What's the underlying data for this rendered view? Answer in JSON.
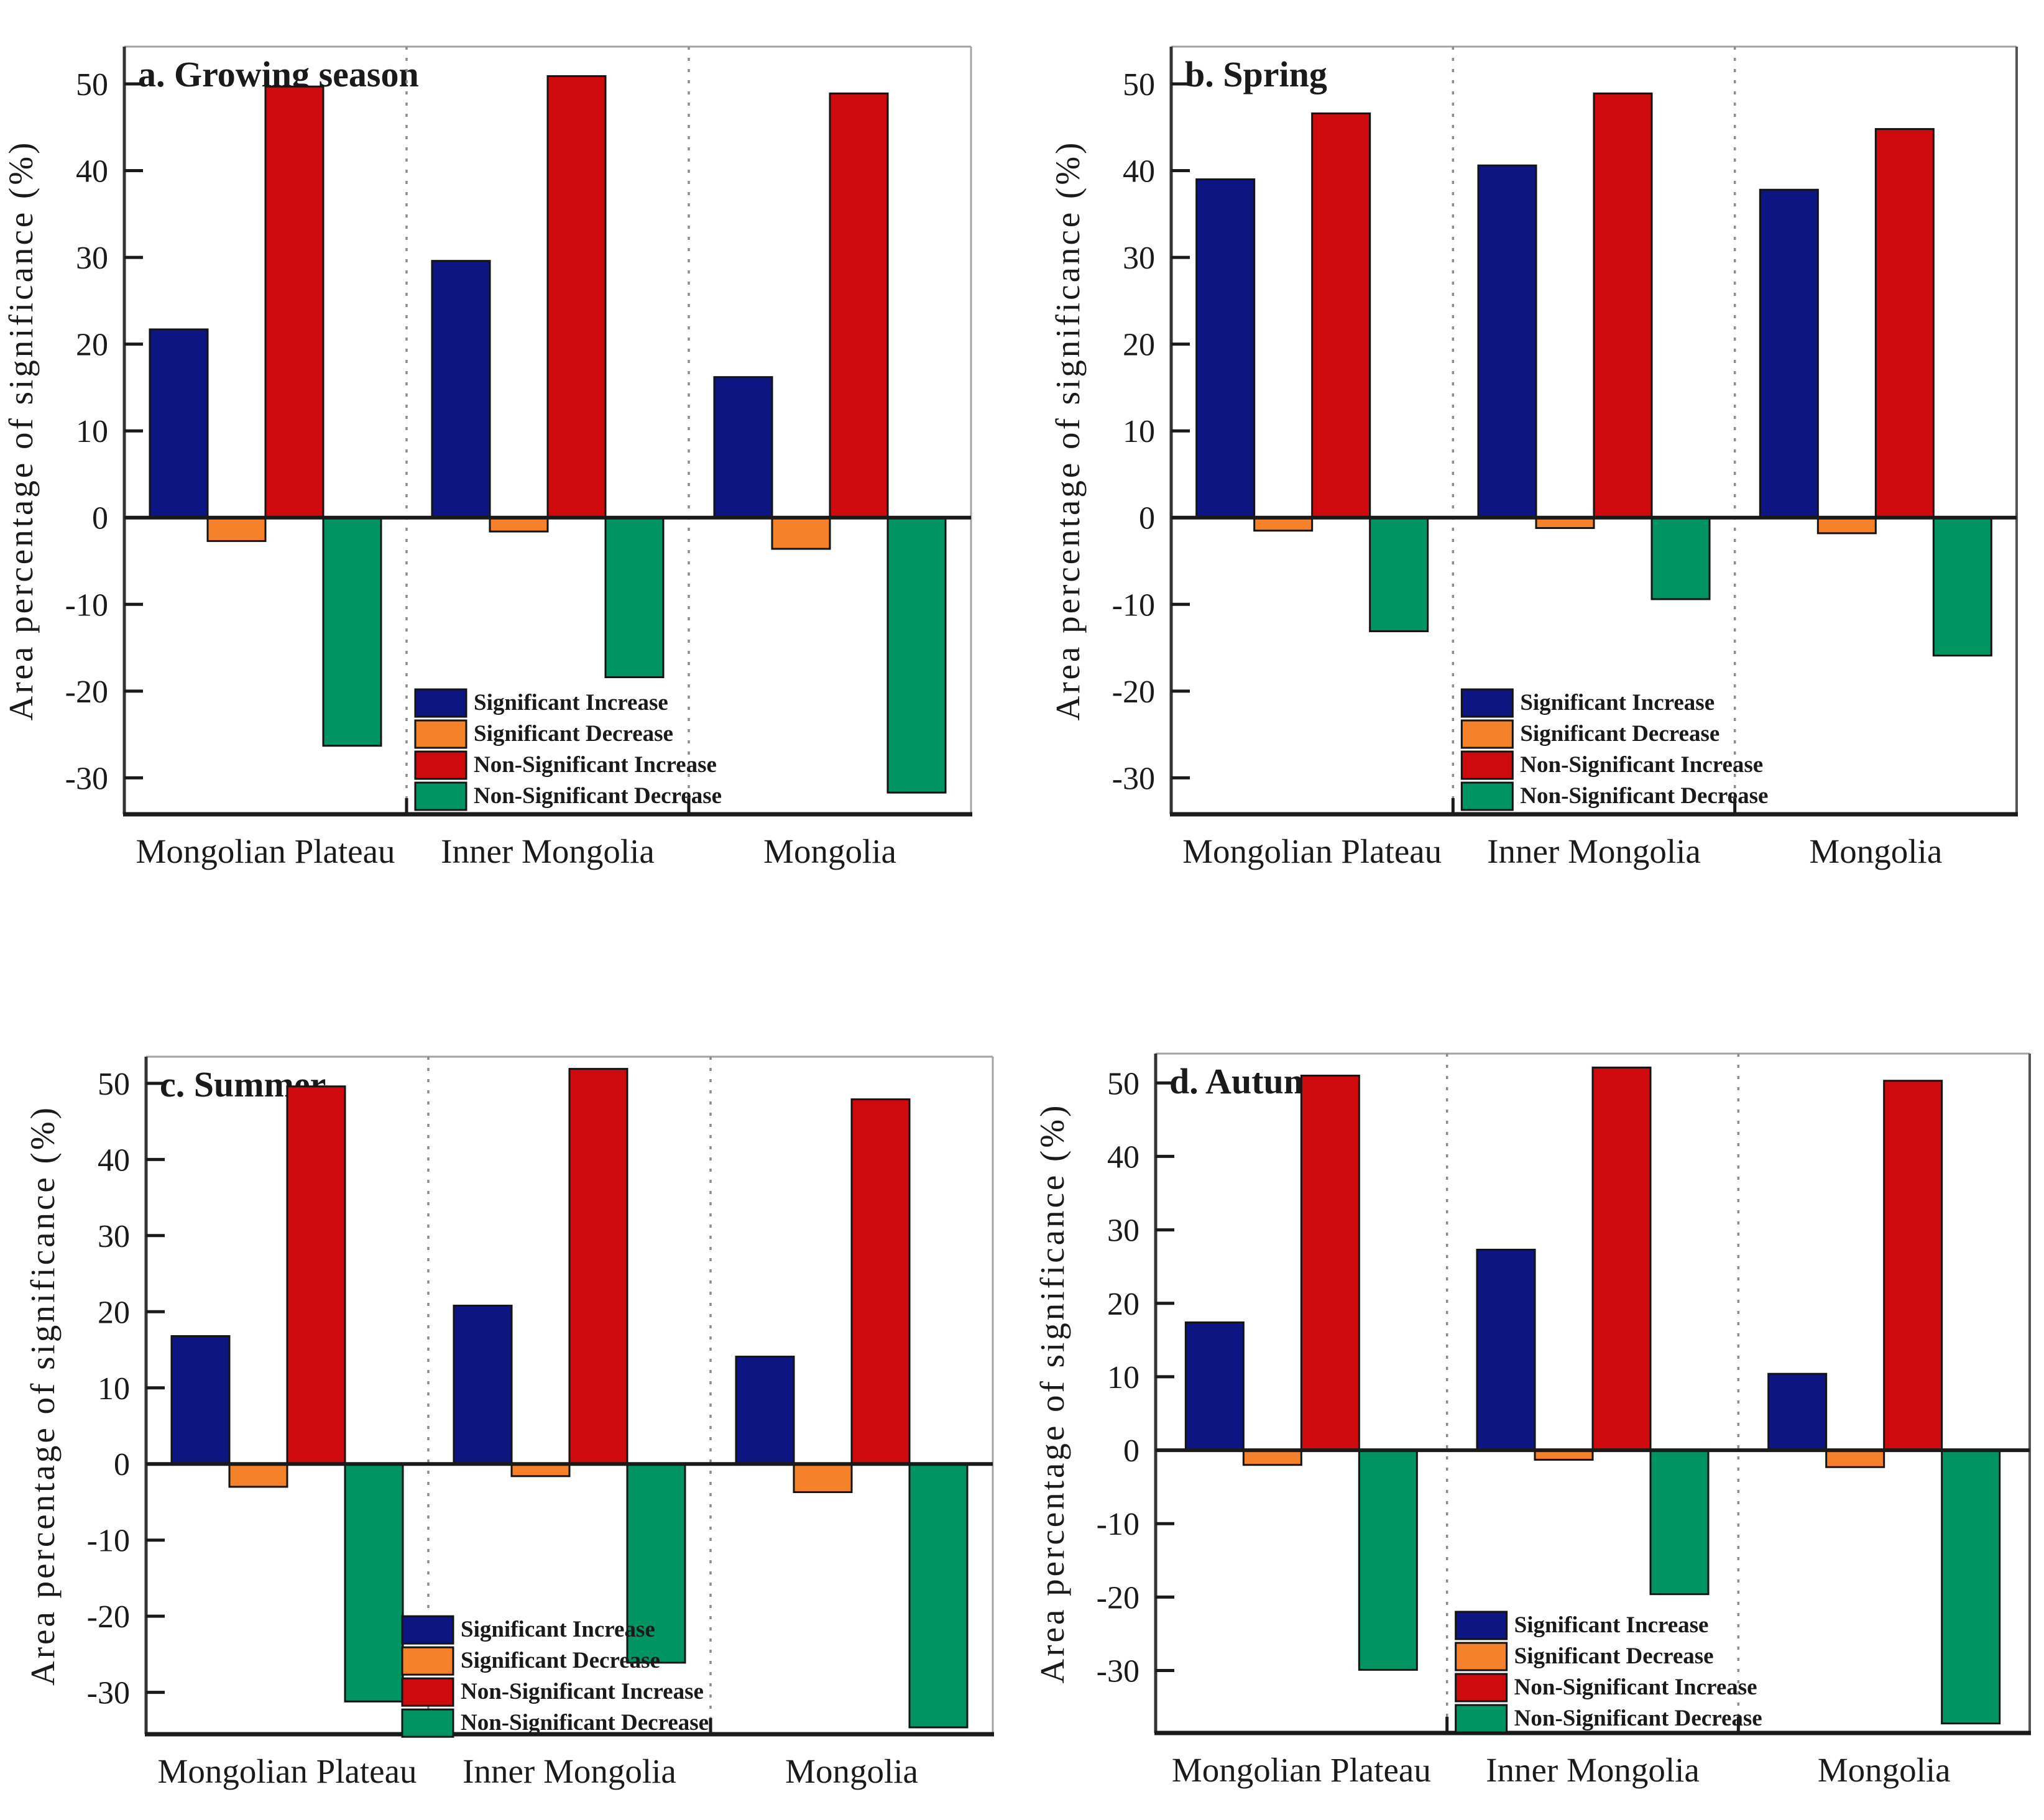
{
  "figure": {
    "ylabel": "Area percentage of significance (%)",
    "categories": [
      "Mongolian Plateau",
      "Inner Mongolia",
      "Mongolia"
    ],
    "legend": [
      "Significant Increase",
      "Significant Decrease",
      "Non-Significant Increase",
      "Non-Significant Decrease"
    ],
    "colors": {
      "significant_increase": "#0D1583",
      "significant_decrease": "#F5822A",
      "non_significant_increase": "#CF0A0E",
      "non_significant_decrease": "#009463",
      "axis": "#1A1A1A",
      "frame": "#A3A3A3",
      "divider": "#8C8C8C",
      "text": "#1A1A1A"
    }
  },
  "chart_data": [
    {
      "type": "bar",
      "panel": "a",
      "title": "a. Growing season",
      "ylabel": "Area percentage of significance (%)",
      "xlabel": "",
      "categories": [
        "Mongolian Plateau",
        "Inner Mongolia",
        "Mongolia"
      ],
      "yticks": [
        50,
        40,
        30,
        20,
        10,
        0,
        -10,
        -20,
        -30
      ],
      "ylim": [
        -34.2,
        54.3
      ],
      "grid": false,
      "legend_position": "inside-bottom-center",
      "series": [
        {
          "name": "Significant Increase",
          "color": "#0D1583",
          "values": [
            21.7,
            29.6,
            16.2
          ]
        },
        {
          "name": "Significant Decrease",
          "color": "#F5822A",
          "values": [
            -2.7,
            -1.6,
            -3.6
          ]
        },
        {
          "name": "Non-Significant Increase",
          "color": "#CF0A0E",
          "values": [
            49.7,
            50.9,
            48.9
          ]
        },
        {
          "name": "Non-Significant Decrease",
          "color": "#009463",
          "values": [
            -26.3,
            -18.4,
            -31.7
          ]
        }
      ]
    },
    {
      "type": "bar",
      "panel": "b",
      "title": "b. Spring",
      "ylabel": "Area percentage of significance (%)",
      "xlabel": "",
      "categories": [
        "Mongolian Plateau",
        "Inner Mongolia",
        "Mongolia"
      ],
      "yticks": [
        50,
        40,
        30,
        20,
        10,
        0,
        -10,
        -20,
        -30
      ],
      "ylim": [
        -34.2,
        54.3
      ],
      "grid": false,
      "legend_position": "inside-bottom-center",
      "series": [
        {
          "name": "Significant Increase",
          "color": "#0D1583",
          "values": [
            39.0,
            40.6,
            37.8
          ]
        },
        {
          "name": "Significant Decrease",
          "color": "#F5822A",
          "values": [
            -1.5,
            -1.2,
            -1.8
          ]
        },
        {
          "name": "Non-Significant Increase",
          "color": "#CF0A0E",
          "values": [
            46.6,
            48.9,
            44.8
          ]
        },
        {
          "name": "Non-Significant Decrease",
          "color": "#009463",
          "values": [
            -13.1,
            -9.4,
            -15.9
          ]
        }
      ]
    },
    {
      "type": "bar",
      "panel": "c",
      "title": "c. Summer",
      "ylabel": "Area percentage of significance (%)",
      "xlabel": "",
      "categories": [
        "Mongolian Plateau",
        "Inner Mongolia",
        "Mongolia"
      ],
      "yticks": [
        50,
        40,
        30,
        20,
        10,
        0,
        -10,
        -20,
        -30
      ],
      "ylim": [
        -35.5,
        53.5
      ],
      "grid": false,
      "legend_position": "inside-bottom-center",
      "series": [
        {
          "name": "Significant Increase",
          "color": "#0D1583",
          "values": [
            16.8,
            20.8,
            14.1
          ]
        },
        {
          "name": "Significant Decrease",
          "color": "#F5822A",
          "values": [
            -3.0,
            -1.6,
            -3.7
          ]
        },
        {
          "name": "Non-Significant Increase",
          "color": "#CF0A0E",
          "values": [
            49.6,
            51.9,
            47.9
          ]
        },
        {
          "name": "Non-Significant Decrease",
          "color": "#009463",
          "values": [
            -31.2,
            -26.1,
            -34.6
          ]
        }
      ]
    },
    {
      "type": "bar",
      "panel": "d",
      "title": "d. Autumn",
      "ylabel": "Area percentage of significance (%)",
      "xlabel": "",
      "categories": [
        "Mongolian Plateau",
        "Inner Mongolia",
        "Mongolia"
      ],
      "yticks": [
        50,
        40,
        30,
        20,
        10,
        0,
        -10,
        -20,
        -30
      ],
      "ylim": [
        -38.5,
        54.0
      ],
      "grid": false,
      "legend_position": "inside-bottom-center",
      "series": [
        {
          "name": "Significant Increase",
          "color": "#0D1583",
          "values": [
            17.4,
            27.3,
            10.4
          ]
        },
        {
          "name": "Significant Decrease",
          "color": "#F5822A",
          "values": [
            -2.0,
            -1.3,
            -2.3
          ]
        },
        {
          "name": "Non-Significant Increase",
          "color": "#CF0A0E",
          "values": [
            51.0,
            52.1,
            50.3
          ]
        },
        {
          "name": "Non-Significant Decrease",
          "color": "#009463",
          "values": [
            -29.9,
            -19.6,
            -37.2
          ]
        }
      ]
    }
  ]
}
